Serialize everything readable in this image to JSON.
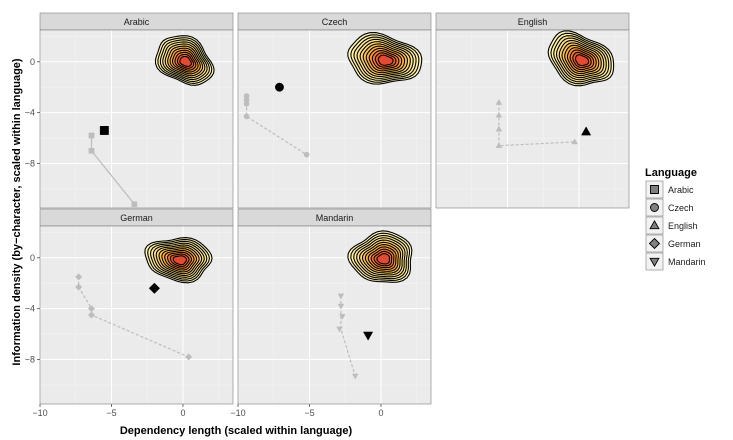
{
  "chart_data": {
    "type": "scatter",
    "xlabel": "Dependency length (scaled within language)",
    "ylabel": "Information density (by−character, scaled within language)",
    "xlim": [
      -10,
      3.5
    ],
    "ylim": [
      -11.5,
      2.5
    ],
    "x_ticks": [
      "−10",
      "−5",
      "0"
    ],
    "x_tick_values": [
      -10,
      -5,
      0
    ],
    "y_ticks": [
      "0",
      "−4",
      "−8"
    ],
    "y_tick_values": [
      0,
      -4,
      -8
    ],
    "grid": true,
    "legend": {
      "title": "Language",
      "position": "right",
      "entries": [
        "Arabic",
        "Czech",
        "English",
        "German",
        "Mandarin"
      ]
    },
    "panels": [
      {
        "name": "Arabic",
        "shape": "square",
        "real": {
          "x": -5.5,
          "y": -5.4
        },
        "baseline_path": [
          [
            -6.4,
            -5.8
          ],
          [
            -6.4,
            -7.0
          ],
          [
            -3.4,
            -11.2
          ]
        ],
        "baseline_points": [
          [
            -6.4,
            -5.8
          ],
          [
            -6.4,
            -7.0
          ],
          [
            -3.4,
            -11.2
          ]
        ],
        "baseline_dashed": false,
        "density": {
          "cx": 0.1,
          "cy": 0.1,
          "rx": 2.1,
          "ry": 1.75,
          "angle": 30
        }
      },
      {
        "name": "Czech",
        "shape": "circle",
        "real": {
          "x": -7.1,
          "y": -2.0
        },
        "baseline_path": [
          [
            -9.4,
            -2.8
          ],
          [
            -9.4,
            -3.3
          ],
          [
            -9.4,
            -4.3
          ],
          [
            -5.2,
            -7.3
          ]
        ],
        "baseline_points": [
          [
            -9.4,
            -2.7
          ],
          [
            -9.4,
            -3.0
          ],
          [
            -9.4,
            -3.3
          ],
          [
            -9.4,
            -4.3
          ],
          [
            -5.2,
            -7.3
          ]
        ],
        "baseline_dashed": true,
        "density": {
          "cx": 0.2,
          "cy": 0.2,
          "rx": 2.6,
          "ry": 1.9,
          "angle": 10
        }
      },
      {
        "name": "English",
        "shape": "triangle",
        "real": {
          "x": 0.5,
          "y": -5.5
        },
        "baseline_path": [
          [
            -5.6,
            -3.2
          ],
          [
            -5.6,
            -6.6
          ],
          [
            -0.3,
            -6.3
          ]
        ],
        "baseline_points": [
          [
            -5.6,
            -3.2
          ],
          [
            -5.6,
            -4.2
          ],
          [
            -5.6,
            -5.3
          ],
          [
            -5.6,
            -6.6
          ],
          [
            -0.3,
            -6.3
          ]
        ],
        "baseline_dashed": true,
        "density": {
          "cx": 0.1,
          "cy": 0.2,
          "rx": 2.4,
          "ry": 1.9,
          "angle": 25
        }
      },
      {
        "name": "German",
        "shape": "diamond",
        "real": {
          "x": -2.0,
          "y": -2.4
        },
        "baseline_path": [
          [
            -7.3,
            -1.5
          ],
          [
            -7.3,
            -2.3
          ],
          [
            -6.4,
            -4.0
          ],
          [
            -6.4,
            -4.5
          ],
          [
            0.4,
            -7.8
          ]
        ],
        "baseline_points": [
          [
            -7.3,
            -1.5
          ],
          [
            -7.3,
            -2.3
          ],
          [
            -6.4,
            -4.0
          ],
          [
            -6.4,
            -4.5
          ],
          [
            0.4,
            -7.8
          ]
        ],
        "baseline_dashed": true,
        "density": {
          "cx": -0.3,
          "cy": -0.1,
          "rx": 2.3,
          "ry": 1.7,
          "angle": 5
        }
      },
      {
        "name": "Mandarin",
        "shape": "triangle-down",
        "real": {
          "x": -0.9,
          "y": -6.1
        },
        "baseline_path": [
          [
            -2.8,
            -3.0
          ],
          [
            -2.8,
            -4.2
          ],
          [
            -2.8,
            -5.6
          ],
          [
            -1.8,
            -9.3
          ]
        ],
        "baseline_points": [
          [
            -2.8,
            -3.0
          ],
          [
            -2.8,
            -3.8
          ],
          [
            -2.7,
            -4.6
          ],
          [
            -2.9,
            -5.6
          ],
          [
            -1.8,
            -9.3
          ]
        ],
        "baseline_dashed": true,
        "density": {
          "cx": 0.1,
          "cy": 0.0,
          "rx": 2.2,
          "ry": 2.0,
          "angle": 0
        }
      }
    ]
  },
  "colors": {
    "panel_background": "#ebebeb",
    "grid": "#ffffff",
    "strip_background": "#d9d9d9",
    "baseline": "#bdbdbd",
    "real_marker": "#000000",
    "density_outer": "#fff7bc",
    "density_mid": "#fec44f",
    "density_inner": "#e34a33"
  }
}
